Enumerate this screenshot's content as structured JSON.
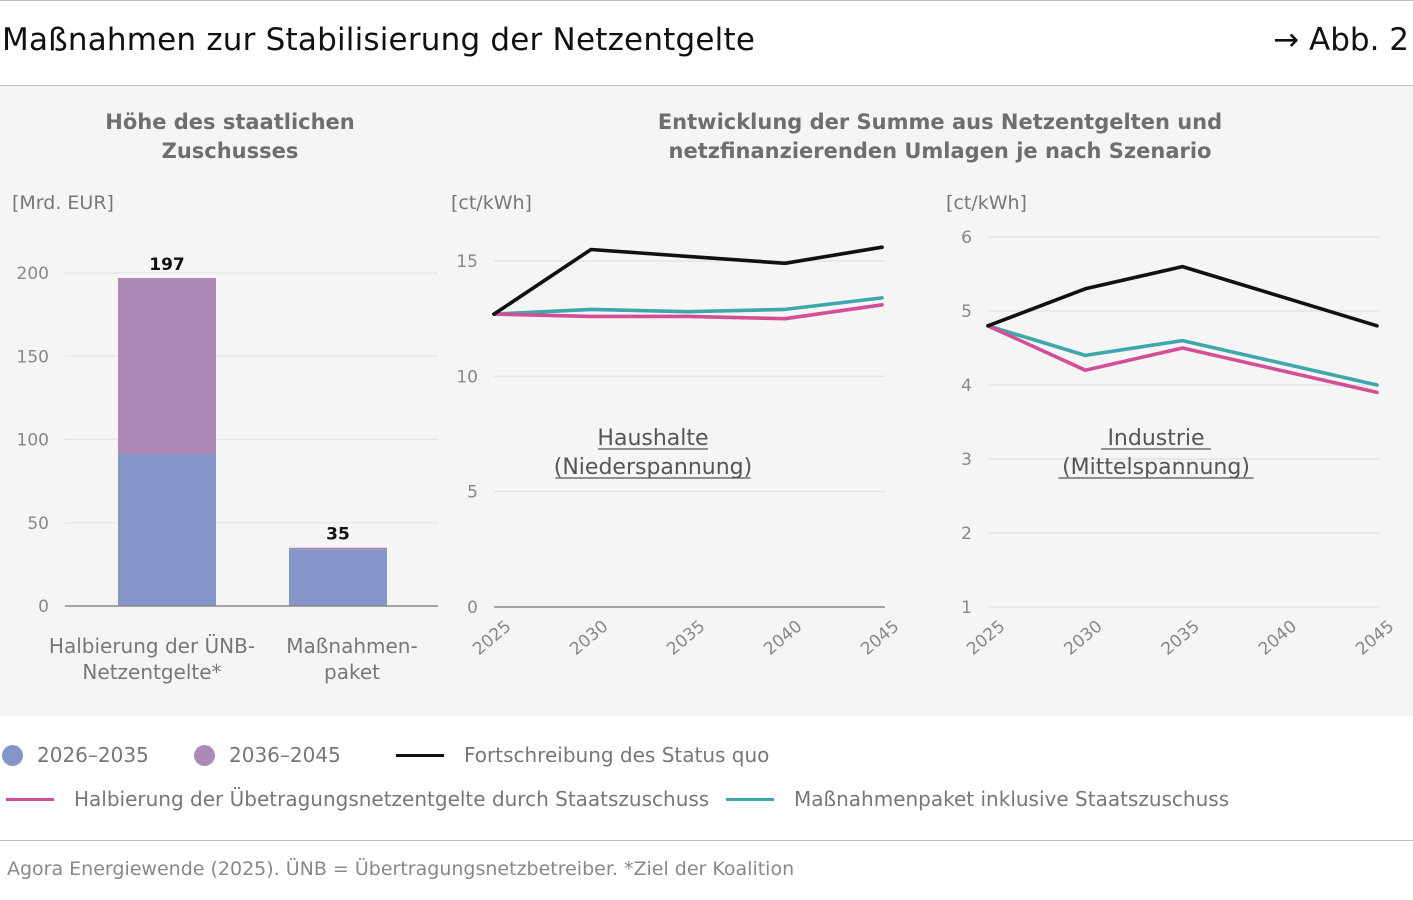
{
  "header": {
    "title": "Maßnahmen zur Stabilisierung der Netzentgelte",
    "figure_ref": "→ Abb. 2"
  },
  "colors": {
    "blue": "#8496c7",
    "purple": "#ad89b8",
    "status_quo": "#111111",
    "halbierung": "#d24f96",
    "paket": "#3fa6a9",
    "grid": "#e3e3e3",
    "axis": "#8a8a8a"
  },
  "chart_data": [
    {
      "type": "bar",
      "title": "Höhe des staatlichen Zuschusses",
      "title_lines": [
        "Höhe des staatlichen",
        "Zuschusses"
      ],
      "ylabel": "[Mrd. EUR]",
      "ylim": [
        0,
        210
      ],
      "yticks": [
        0,
        50,
        100,
        150,
        200
      ],
      "categories": [
        "Halbierung der ÜNB-Netzentgelte*",
        "Maßnahmen-paket"
      ],
      "category_lines": [
        [
          "Halbierung der ÜNB-",
          "Netzentgelte*"
        ],
        [
          "Maßnahmen-",
          "paket"
        ]
      ],
      "series": [
        {
          "name": "2026–2035",
          "values": [
            91,
            34
          ]
        },
        {
          "name": "2036–2045",
          "values": [
            106,
            1
          ]
        }
      ],
      "totals": [
        197,
        35
      ],
      "stacked": true,
      "grid": true
    },
    {
      "type": "line",
      "title": "Entwicklung der Summe aus Netzentgelten und netzfinanzierenden Umlagen je nach Szenario",
      "title_lines": [
        "Entwicklung der Summe aus Netzentgelten und",
        "netzfinanzierenden Umlagen je nach Szenario"
      ],
      "panel_label_lines": [
        "Haushalte",
        "(Niederspannung)"
      ],
      "ylabel": "[ct/kWh]",
      "x": [
        2025,
        2030,
        2035,
        2040,
        2045
      ],
      "xticks": [
        "2025",
        "2030",
        "2035",
        "2040",
        "2045"
      ],
      "ylim": [
        0,
        16.5
      ],
      "yticks": [
        0,
        5,
        10,
        15
      ],
      "series": [
        {
          "name": "Fortschreibung des Status quo",
          "values": [
            12.7,
            15.5,
            15.2,
            14.9,
            15.6
          ]
        },
        {
          "name": "Halbierung der Übetragungsnetzentgelte durch Staatszuschuss",
          "values": [
            12.7,
            12.6,
            12.6,
            12.5,
            13.1
          ]
        },
        {
          "name": "Maßnahmenpaket inklusive Staatszuschuss",
          "values": [
            12.7,
            12.9,
            12.8,
            12.9,
            13.4
          ]
        }
      ],
      "grid": true
    },
    {
      "type": "line",
      "panel_label_lines": [
        "Industrie",
        "(Mittelspannung)"
      ],
      "ylabel": "[ct/kWh]",
      "x": [
        2025,
        2030,
        2035,
        2040,
        2045
      ],
      "xticks": [
        "2025",
        "2030",
        "2035",
        "2040",
        "2045"
      ],
      "ylim": [
        1,
        6
      ],
      "yticks": [
        1,
        2,
        3,
        4,
        5,
        6
      ],
      "series": [
        {
          "name": "Fortschreibung des Status quo",
          "values": [
            4.8,
            5.3,
            5.6,
            5.2,
            4.8
          ]
        },
        {
          "name": "Halbierung der Übetragungsnetzentgelte durch Staatszuschuss",
          "values": [
            4.8,
            4.2,
            4.5,
            4.2,
            3.9
          ]
        },
        {
          "name": "Maßnahmenpaket inklusive Staatszuschuss",
          "values": [
            4.8,
            4.4,
            4.6,
            4.3,
            4.0
          ]
        }
      ],
      "grid": true
    }
  ],
  "legend": {
    "items": [
      {
        "label": "2026–2035",
        "kind": "dot",
        "color": "#8496c7"
      },
      {
        "label": "2036–2045",
        "kind": "dot",
        "color": "#ad89b8"
      },
      {
        "label": "Fortschreibung des Status quo",
        "kind": "line",
        "color": "#111111"
      },
      {
        "label": "Halbierung der Übetragungsnetzentgelte durch Staatszuschuss",
        "kind": "line",
        "color": "#d24f96"
      },
      {
        "label": "Maßnahmenpaket inklusive Staatszuschuss",
        "kind": "line",
        "color": "#3fa6a9"
      }
    ]
  },
  "footer": {
    "source": "Agora Energiewende (2025). ÜNB = Übertragungsnetzbetreiber. *Ziel der Koalition"
  }
}
